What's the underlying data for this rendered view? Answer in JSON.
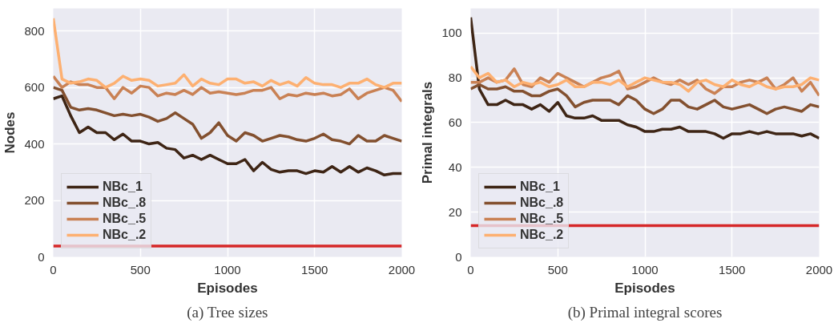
{
  "chart_data": [
    {
      "type": "line",
      "xlabel": "Episodes",
      "ylabel": "Nodes",
      "annotations": [
        "(a) Tree sizes"
      ],
      "x": [
        0,
        50,
        100,
        150,
        200,
        250,
        300,
        350,
        400,
        450,
        500,
        550,
        600,
        650,
        700,
        750,
        800,
        850,
        900,
        950,
        1000,
        1050,
        1100,
        1150,
        1200,
        1250,
        1300,
        1350,
        1400,
        1450,
        1500,
        1550,
        1600,
        1650,
        1700,
        1750,
        1800,
        1850,
        1900,
        1950,
        2000
      ],
      "xlim": [
        0,
        2000
      ],
      "xticks": [
        0,
        500,
        1000,
        1500,
        2000
      ],
      "ylim": [
        0,
        880
      ],
      "yticks": [
        0,
        200,
        400,
        600,
        800
      ],
      "grid": true,
      "legend": "bottom left",
      "line_style": "solid",
      "series": [
        {
          "name": "NBc_1",
          "color": "#3e2515",
          "values": [
            560,
            570,
            500,
            440,
            460,
            440,
            440,
            415,
            435,
            410,
            410,
            400,
            405,
            385,
            380,
            350,
            360,
            345,
            360,
            345,
            330,
            330,
            345,
            305,
            335,
            310,
            300,
            305,
            305,
            295,
            305,
            300,
            320,
            300,
            320,
            300,
            315,
            305,
            290,
            295,
            295
          ]
        },
        {
          "name": "NBc_.8",
          "color": "#83502f",
          "values": [
            600,
            590,
            530,
            520,
            525,
            520,
            510,
            500,
            505,
            500,
            505,
            495,
            480,
            490,
            510,
            490,
            470,
            420,
            440,
            475,
            430,
            410,
            440,
            430,
            410,
            420,
            430,
            425,
            415,
            410,
            420,
            435,
            415,
            410,
            400,
            430,
            410,
            410,
            430,
            420,
            410
          ]
        },
        {
          "name": "NBc_.5",
          "color": "#c98154",
          "values": [
            640,
            600,
            620,
            610,
            610,
            600,
            600,
            560,
            600,
            580,
            605,
            600,
            570,
            580,
            575,
            590,
            575,
            600,
            580,
            585,
            580,
            575,
            580,
            590,
            590,
            600,
            560,
            575,
            570,
            580,
            575,
            580,
            570,
            575,
            595,
            560,
            580,
            590,
            600,
            590,
            550
          ]
        },
        {
          "name": "NBc_.2",
          "color": "#fdb071",
          "values": [
            845,
            630,
            615,
            620,
            630,
            625,
            600,
            615,
            640,
            625,
            630,
            625,
            605,
            610,
            615,
            645,
            605,
            630,
            615,
            610,
            630,
            630,
            615,
            620,
            605,
            625,
            610,
            620,
            605,
            635,
            615,
            610,
            610,
            600,
            615,
            615,
            630,
            610,
            600,
            615,
            615
          ]
        }
      ],
      "ref_lines": [
        {
          "axis": "y",
          "value": 38,
          "color": "#d62728"
        }
      ]
    },
    {
      "type": "line",
      "xlabel": "Episodes",
      "ylabel": "Primal integrals",
      "annotations": [
        "(b) Primal integral scores"
      ],
      "x": [
        0,
        50,
        100,
        150,
        200,
        250,
        300,
        350,
        400,
        450,
        500,
        550,
        600,
        650,
        700,
        750,
        800,
        850,
        900,
        950,
        1000,
        1050,
        1100,
        1150,
        1200,
        1250,
        1300,
        1350,
        1400,
        1450,
        1500,
        1550,
        1600,
        1650,
        1700,
        1750,
        1800,
        1850,
        1900,
        1950,
        2000
      ],
      "xlim": [
        0,
        2000
      ],
      "xticks": [
        0,
        500,
        1000,
        1500,
        2000
      ],
      "ylim": [
        0,
        111
      ],
      "yticks": [
        0,
        20,
        40,
        60,
        80,
        100
      ],
      "grid": true,
      "legend": "bottom left",
      "line_style": "solid",
      "series": [
        {
          "name": "NBc_1",
          "color": "#3e2515",
          "values": [
            107,
            75,
            68,
            68,
            70,
            68,
            68,
            66,
            68,
            65,
            69,
            63,
            62,
            62,
            63,
            61,
            61,
            61,
            59,
            58,
            56,
            56,
            57,
            57,
            58,
            56,
            56,
            56,
            55,
            53,
            55,
            55,
            56,
            55,
            56,
            55,
            55,
            55,
            54,
            55,
            53
          ]
        },
        {
          "name": "NBc_.8",
          "color": "#83502f",
          "values": [
            75,
            77,
            75,
            75,
            76,
            74,
            74,
            72,
            72,
            74,
            75,
            72,
            67,
            69,
            70,
            70,
            70,
            68,
            72,
            70,
            66,
            64,
            66,
            70,
            70,
            67,
            66,
            68,
            70,
            67,
            66,
            67,
            68,
            66,
            64,
            66,
            67,
            66,
            65,
            68,
            67
          ]
        },
        {
          "name": "NBc_.5",
          "color": "#c98154",
          "values": [
            78,
            78,
            80,
            78,
            79,
            84,
            77,
            76,
            80,
            78,
            82,
            80,
            78,
            76,
            78,
            80,
            81,
            83,
            75,
            76,
            78,
            80,
            78,
            77,
            79,
            77,
            79,
            75,
            73,
            76,
            76,
            78,
            79,
            78,
            80,
            75,
            77,
            80,
            74,
            78,
            72
          ]
        },
        {
          "name": "NBc_.2",
          "color": "#fdb071",
          "values": [
            85,
            80,
            82,
            78,
            79,
            76,
            78,
            77,
            78,
            76,
            77,
            79,
            76,
            76,
            78,
            78,
            77,
            79,
            76,
            78,
            80,
            79,
            78,
            78,
            77,
            74,
            78,
            79,
            77,
            76,
            79,
            77,
            76,
            78,
            76,
            75,
            76,
            76,
            77,
            80,
            79
          ]
        }
      ],
      "ref_lines": [
        {
          "axis": "y",
          "value": 14,
          "color": "#d62728"
        }
      ]
    }
  ]
}
